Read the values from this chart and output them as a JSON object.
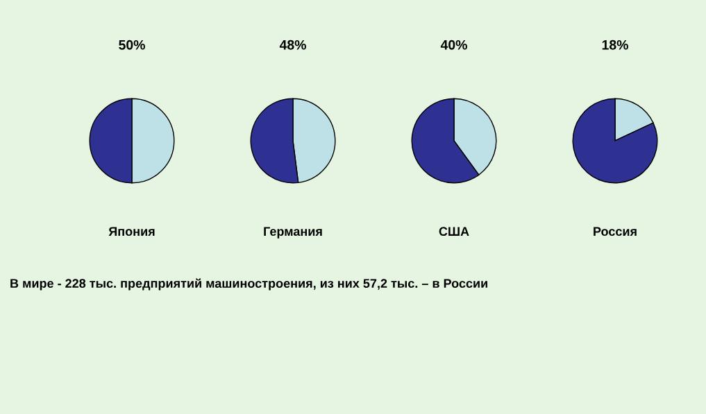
{
  "chart_data": [
    {
      "type": "pie",
      "title": "50%",
      "xlabel": "Япония",
      "categories": [
        null,
        null
      ],
      "values": [
        50,
        50
      ],
      "colors": [
        "#bde1e6",
        "#2e3192"
      ]
    },
    {
      "type": "pie",
      "title": "48%",
      "xlabel": "Германия",
      "categories": [
        null,
        null
      ],
      "values": [
        48,
        52
      ],
      "colors": [
        "#bde1e6",
        "#2e3192"
      ]
    },
    {
      "type": "pie",
      "title": "40%",
      "xlabel": "США",
      "categories": [
        null,
        null
      ],
      "values": [
        40,
        60
      ],
      "colors": [
        "#bde1e6",
        "#2e3192"
      ]
    },
    {
      "type": "pie",
      "title": "18%",
      "xlabel": "Россия",
      "categories": [
        null,
        null
      ],
      "values": [
        18,
        82
      ],
      "colors": [
        "#bde1e6",
        "#2e3192"
      ],
      "annotations": [
        "В мире - 228 тыс. предприятий машиностроения, из них 57,2 тыс. – в России"
      ]
    }
  ]
}
